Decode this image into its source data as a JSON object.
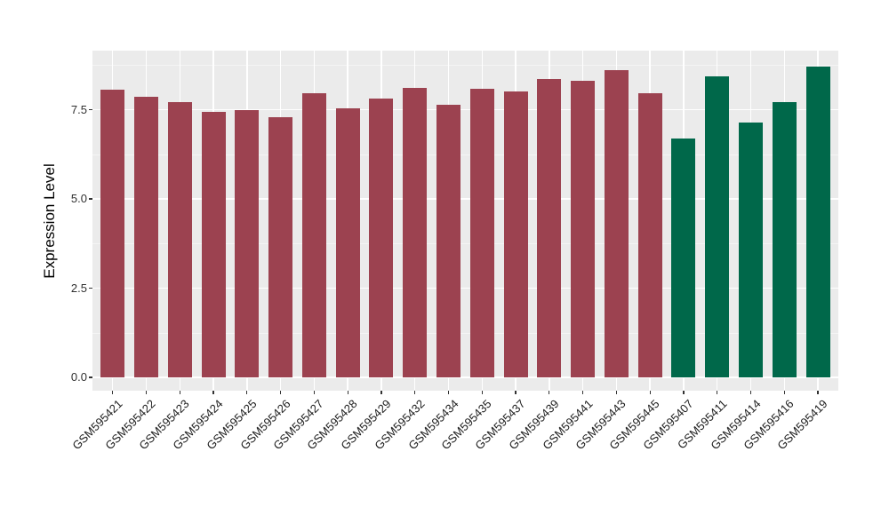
{
  "chart_data": {
    "type": "bar",
    "title": "",
    "xlabel": "",
    "ylabel": "Expression Level",
    "ylim": [
      0,
      9.2
    ],
    "yticks": [
      0.0,
      2.5,
      5.0,
      7.5
    ],
    "ytick_labels": [
      "0.0",
      "2.5",
      "5.0",
      "7.5"
    ],
    "yticks_minor": [
      1.25,
      3.75,
      6.25,
      8.75
    ],
    "grid": true,
    "legend_position": "none",
    "panel_bg": "#EBEBEB",
    "grid_major_color": "#FFFFFF",
    "grid_minor_color": "#F5F5F5",
    "categories": [
      "GSM595421",
      "GSM595422",
      "GSM595423",
      "GSM595424",
      "GSM595425",
      "GSM595426",
      "GSM595427",
      "GSM595428",
      "GSM595429",
      "GSM595432",
      "GSM595434",
      "GSM595435",
      "GSM595437",
      "GSM595439",
      "GSM595441",
      "GSM595443",
      "GSM595445",
      "GSM595407",
      "GSM595411",
      "GSM595414",
      "GSM595416",
      "GSM595419"
    ],
    "values": [
      8.07,
      7.87,
      7.7,
      7.43,
      7.48,
      7.28,
      7.95,
      7.53,
      7.82,
      8.1,
      7.63,
      8.09,
      8.0,
      8.37,
      8.31,
      8.6,
      7.97,
      6.7,
      8.44,
      7.14,
      7.7,
      8.71
    ],
    "groups": [
      "red",
      "red",
      "red",
      "red",
      "red",
      "red",
      "red",
      "red",
      "red",
      "red",
      "red",
      "red",
      "red",
      "red",
      "red",
      "red",
      "red",
      "green",
      "green",
      "green",
      "green",
      "green"
    ],
    "group_colors": {
      "red": "#9C4250",
      "green": "#00684A"
    },
    "axis": {
      "tick_color": "#333333",
      "label_color": "#303030"
    }
  }
}
